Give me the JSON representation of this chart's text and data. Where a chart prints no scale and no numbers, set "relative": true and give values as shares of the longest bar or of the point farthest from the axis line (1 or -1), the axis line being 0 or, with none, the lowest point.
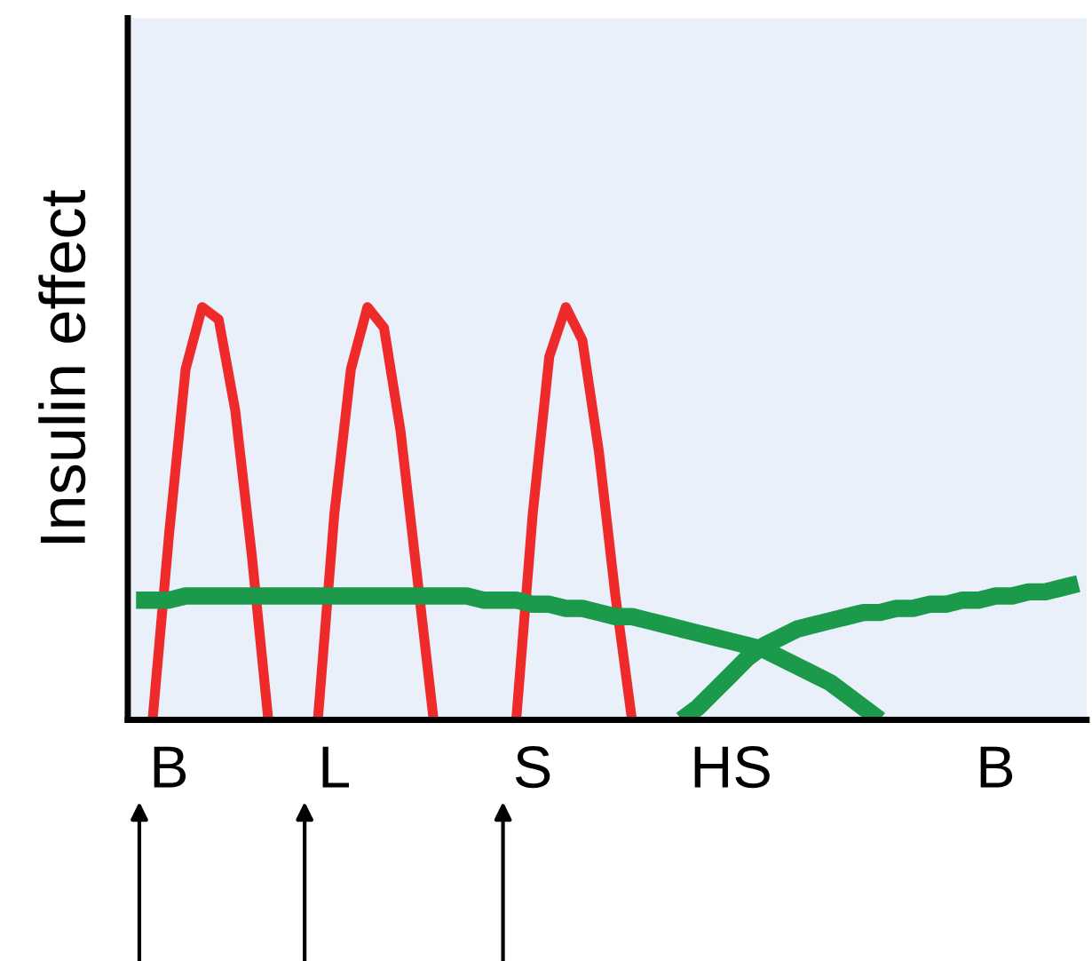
{
  "chart_data": {
    "type": "line",
    "relative": true,
    "ylabel": "Insulin effect",
    "categories": [
      null,
      null,
      "B",
      null,
      null,
      null,
      null,
      null,
      null,
      null,
      null,
      null,
      "L",
      null,
      null,
      null,
      null,
      null,
      null,
      null,
      null,
      null,
      null,
      null,
      "S",
      null,
      null,
      null,
      null,
      null,
      null,
      null,
      null,
      null,
      null,
      null,
      "HS",
      null,
      null,
      null,
      null,
      null,
      null,
      null,
      null,
      null,
      null,
      null,
      null,
      null,
      null,
      null,
      "B",
      null,
      null,
      null,
      null,
      null
    ],
    "grid": false,
    "legend": false,
    "marker": "none",
    "line_style": "solid",
    "series": [
      {
        "color": "#ee2a2a",
        "values": [
          null,
          0,
          0.45,
          0.85,
          1,
          0.97,
          0.75,
          0.4,
          0,
          null,
          null,
          0,
          0.5,
          0.85,
          1,
          0.95,
          0.7,
          0.35,
          0,
          null,
          null,
          null,
          null,
          0,
          0.5,
          0.88,
          1,
          0.92,
          0.65,
          0.3,
          0,
          null,
          null,
          null,
          null,
          null,
          null,
          null,
          null,
          null,
          null,
          null,
          null,
          null,
          null,
          null,
          null,
          null,
          null,
          null,
          null,
          null,
          null,
          null,
          null,
          null,
          null,
          null
        ]
      },
      {
        "color": "#1a9a4a",
        "values": [
          0.29,
          0.29,
          0.29,
          0.3,
          0.3,
          0.3,
          0.3,
          0.3,
          0.3,
          0.3,
          0.3,
          0.3,
          0.3,
          0.3,
          0.3,
          0.3,
          0.3,
          0.3,
          0.3,
          0.3,
          0.3,
          0.29,
          0.29,
          0.29,
          0.28,
          0.28,
          0.27,
          0.27,
          0.26,
          0.25,
          0.25,
          0.24,
          0.23,
          0.22,
          0.21,
          0.2,
          0.19,
          0.18,
          0.17,
          0.15,
          0.13,
          0.11,
          0.09,
          0.06,
          0.03,
          0,
          null,
          null,
          null,
          null,
          null,
          null,
          null,
          null,
          null,
          null,
          null,
          null
        ]
      },
      {
        "color": "#1a9a4a",
        "values": [
          null,
          null,
          null,
          null,
          null,
          null,
          null,
          null,
          null,
          null,
          null,
          null,
          null,
          null,
          null,
          null,
          null,
          null,
          null,
          null,
          null,
          null,
          null,
          null,
          null,
          null,
          null,
          null,
          null,
          null,
          null,
          null,
          null,
          0,
          0.03,
          0.07,
          0.11,
          0.15,
          0.18,
          0.2,
          0.22,
          0.23,
          0.24,
          0.25,
          0.26,
          0.26,
          0.27,
          0.27,
          0.28,
          0.28,
          0.29,
          0.29,
          0.3,
          0.3,
          0.31,
          0.31,
          0.32,
          0.33
        ]
      }
    ]
  }
}
